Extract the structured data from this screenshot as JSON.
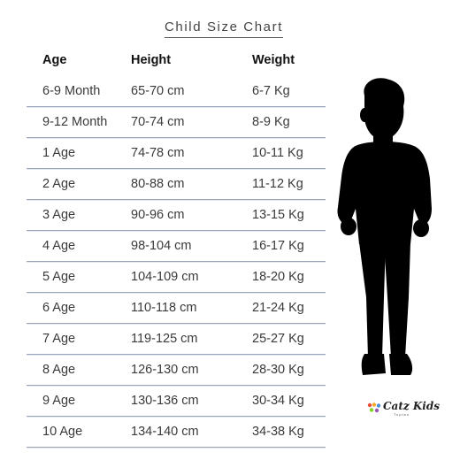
{
  "title": "Child Size Chart",
  "headers": {
    "age": "Age",
    "height": "Height",
    "weight": "Weight"
  },
  "rows": [
    {
      "age": "6-9 Month",
      "height": "65-70 cm",
      "weight": "6-7 Kg"
    },
    {
      "age": "9-12 Month",
      "height": "70-74 cm",
      "weight": "8-9 Kg"
    },
    {
      "age": "1 Age",
      "height": "74-78 cm",
      "weight": "10-11 Kg"
    },
    {
      "age": "2 Age",
      "height": "80-88 cm",
      "weight": "11-12 Kg"
    },
    {
      "age": "3 Age",
      "height": "90-96 cm",
      "weight": "13-15 Kg"
    },
    {
      "age": "4 Age",
      "height": "98-104 cm",
      "weight": "16-17 Kg"
    },
    {
      "age": "5 Age",
      "height": "104-109 cm",
      "weight": "18-20 Kg"
    },
    {
      "age": "6 Age",
      "height": "110-118 cm",
      "weight": "21-24 Kg"
    },
    {
      "age": "7 Age",
      "height": "119-125 cm",
      "weight": "25-27 Kg"
    },
    {
      "age": "8 Age",
      "height": "126-130 cm",
      "weight": "28-30 Kg"
    },
    {
      "age": "9 Age",
      "height": "130-136 cm",
      "weight": "30-34 Kg"
    },
    {
      "age": "10 Age",
      "height": "134-140 cm",
      "weight": "34-38 Kg"
    }
  ],
  "logo": {
    "text": "Catz Kids",
    "subtext": "Toptan"
  },
  "colors": {
    "silhouette": "#000000",
    "divider": "#9aa5b8",
    "logo_dots": [
      "#e94e3c",
      "#f5a623",
      "#4a90d9",
      "#7ed321",
      "#9b59b6"
    ]
  },
  "icons": {
    "figure": "child-silhouette-icon",
    "logo": "logo-dots-icon"
  }
}
